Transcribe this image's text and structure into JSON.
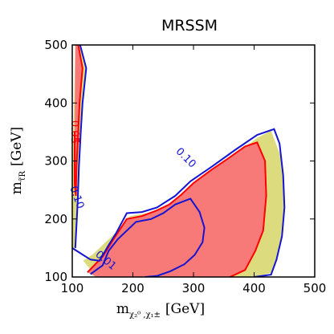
{
  "chart_data": {
    "type": "contour",
    "title": "MRSSM",
    "xlabel": {
      "base": "m",
      "sub": "χ₂⁰ ,χ₁±",
      "unit": "[GeV]"
    },
    "ylabel": {
      "base": "m",
      "sub": "τ̃R",
      "unit": "[GeV]"
    },
    "xlim": [
      100,
      500
    ],
    "ylim": [
      100,
      500
    ],
    "x_ticks": [
      100,
      200,
      300,
      400,
      500
    ],
    "y_ticks": [
      100,
      200,
      300,
      400,
      500
    ],
    "grid": false,
    "colors": {
      "excluded_fill": "#f77a78",
      "band_fill": "#dcdc7e",
      "contour_red": "#ff0000",
      "contour_blue": "#1414d2"
    },
    "contour_labels": [
      {
        "text": "0.05",
        "x": 103,
        "y": 350,
        "rotation": 90,
        "color": "#ff0000"
      },
      {
        "text": "0.10",
        "x": 107,
        "y": 237,
        "rotation": 70,
        "color": "#1414d2"
      },
      {
        "text": "0.01",
        "x": 155,
        "y": 128,
        "rotation": 40,
        "color": "#1414d2"
      },
      {
        "text": "0.10",
        "x": 287,
        "y": 305,
        "rotation": 45,
        "color": "#1414d2"
      }
    ],
    "regions": {
      "left_band_outer": [
        [
          105,
          500
        ],
        [
          113,
          500
        ],
        [
          123,
          460
        ],
        [
          117,
          400
        ],
        [
          114,
          350
        ],
        [
          111,
          290
        ],
        [
          109,
          230
        ],
        [
          105,
          150
        ],
        [
          100,
          150
        ],
        [
          100,
          260
        ],
        [
          102,
          350
        ]
      ],
      "left_red_inner": [
        [
          105,
          500
        ],
        [
          110,
          500
        ],
        [
          117,
          460
        ],
        [
          112,
          400
        ],
        [
          110,
          350
        ],
        [
          107,
          290
        ],
        [
          106,
          240
        ],
        [
          104,
          260
        ],
        [
          104,
          350
        ]
      ],
      "left_blue_line": [
        [
          113,
          500
        ],
        [
          123,
          460
        ],
        [
          117,
          400
        ],
        [
          114,
          350
        ],
        [
          111,
          290
        ],
        [
          109,
          230
        ],
        [
          105,
          150
        ]
      ],
      "main_band_outer": [
        [
          118,
          128
        ],
        [
          135,
          140
        ],
        [
          155,
          160
        ],
        [
          175,
          180
        ],
        [
          195,
          205
        ],
        [
          225,
          210
        ],
        [
          255,
          220
        ],
        [
          275,
          235
        ],
        [
          300,
          262
        ],
        [
          340,
          290
        ],
        [
          380,
          320
        ],
        [
          405,
          340
        ],
        [
          428,
          352
        ],
        [
          445,
          305
        ],
        [
          450,
          250
        ],
        [
          447,
          180
        ],
        [
          440,
          140
        ],
        [
          430,
          108
        ],
        [
          405,
          100
        ],
        [
          140,
          100
        ]
      ],
      "main_red": [
        [
          125,
          108
        ],
        [
          150,
          135
        ],
        [
          168,
          165
        ],
        [
          190,
          200
        ],
        [
          215,
          205
        ],
        [
          240,
          215
        ],
        [
          260,
          225
        ],
        [
          280,
          242
        ],
        [
          300,
          262
        ],
        [
          330,
          285
        ],
        [
          358,
          305
        ],
        [
          385,
          325
        ],
        [
          405,
          332
        ],
        [
          418,
          300
        ],
        [
          420,
          240
        ],
        [
          415,
          180
        ],
        [
          402,
          145
        ],
        [
          385,
          112
        ],
        [
          360,
          100
        ],
        [
          140,
          100
        ]
      ],
      "main_red_outline": [
        [
          125,
          108
        ],
        [
          150,
          135
        ],
        [
          168,
          165
        ],
        [
          190,
          200
        ],
        [
          215,
          205
        ],
        [
          240,
          215
        ],
        [
          260,
          225
        ],
        [
          280,
          242
        ],
        [
          300,
          262
        ],
        [
          330,
          285
        ],
        [
          358,
          305
        ],
        [
          385,
          325
        ],
        [
          405,
          332
        ],
        [
          418,
          300
        ],
        [
          420,
          240
        ],
        [
          415,
          180
        ],
        [
          402,
          145
        ],
        [
          385,
          112
        ],
        [
          360,
          100
        ]
      ],
      "outer_blue": [
        [
          100,
          150
        ],
        [
          115,
          140
        ],
        [
          130,
          130
        ],
        [
          145,
          128
        ],
        [
          160,
          155
        ],
        [
          172,
          175
        ],
        [
          190,
          210
        ],
        [
          215,
          212
        ],
        [
          240,
          220
        ],
        [
          270,
          240
        ],
        [
          295,
          265
        ],
        [
          330,
          290
        ],
        [
          370,
          320
        ],
        [
          405,
          345
        ],
        [
          433,
          355
        ],
        [
          442,
          330
        ],
        [
          448,
          275
        ],
        [
          450,
          220
        ],
        [
          446,
          170
        ],
        [
          437,
          130
        ],
        [
          428,
          104
        ],
        [
          400,
          100
        ]
      ],
      "inner_blue": [
        [
          130,
          105
        ],
        [
          150,
          120
        ],
        [
          160,
          145
        ],
        [
          175,
          165
        ],
        [
          205,
          195
        ],
        [
          230,
          200
        ],
        [
          250,
          210
        ],
        [
          270,
          225
        ],
        [
          295,
          235
        ],
        [
          310,
          212
        ],
        [
          318,
          185
        ],
        [
          315,
          160
        ],
        [
          302,
          138
        ],
        [
          285,
          122
        ],
        [
          262,
          110
        ],
        [
          240,
          102
        ],
        [
          220,
          100
        ]
      ]
    }
  }
}
